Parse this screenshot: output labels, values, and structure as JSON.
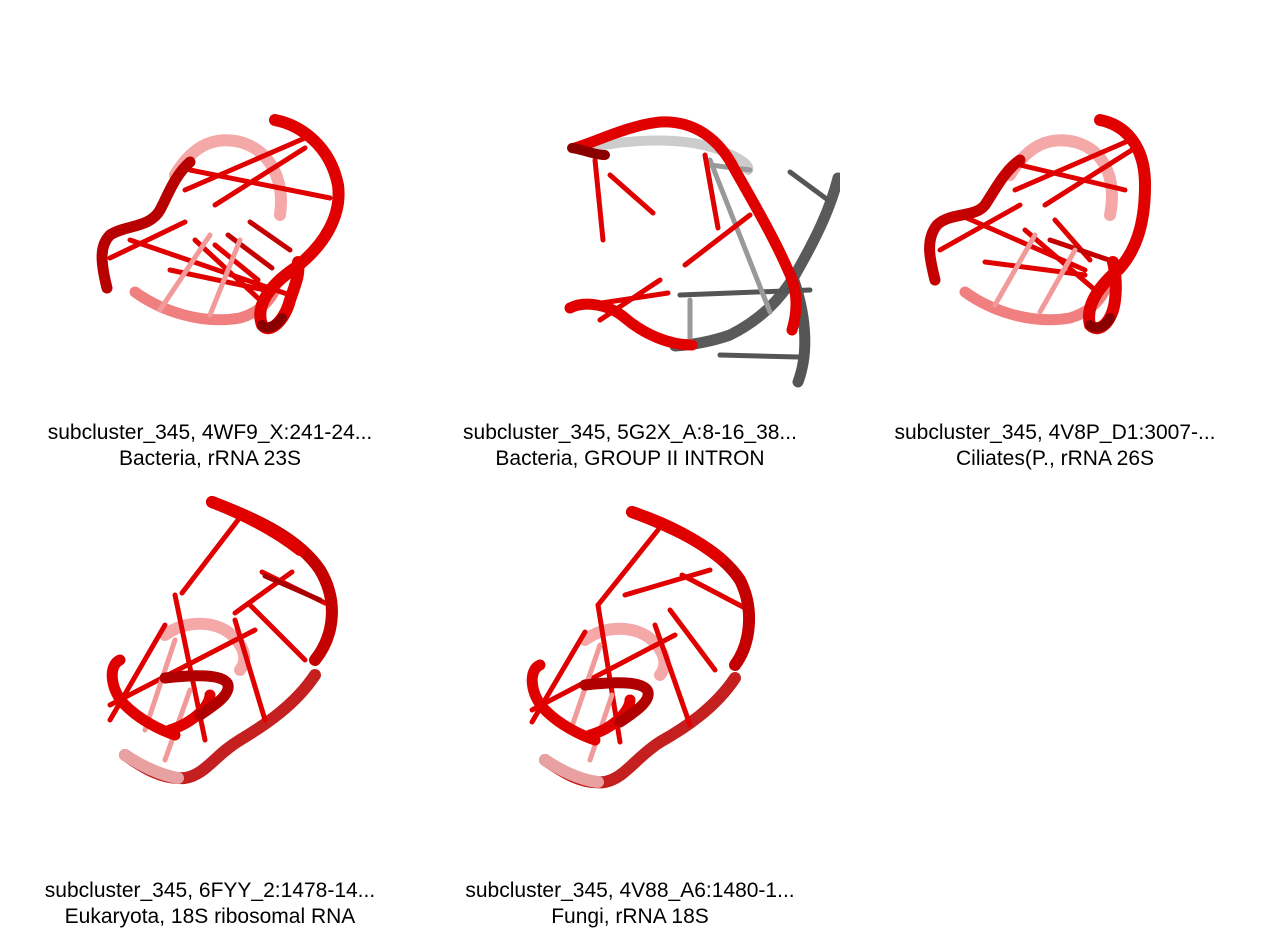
{
  "panels": [
    {
      "line1": "subcluster_345, 4WF9_X:241-24...",
      "line2": "Bacteria, rRNA 23S"
    },
    {
      "line1": "subcluster_345, 5G2X_A:8-16_38...",
      "line2": "Bacteria, GROUP II INTRON"
    },
    {
      "line1": "subcluster_345, 4V8P_D1:3007-...",
      "line2": "Ciliates(P., rRNA 26S"
    },
    {
      "line1": "subcluster_345, 6FYY_2:1478-14...",
      "line2": "Eukaryota, 18S ribosomal RNA"
    },
    {
      "line1": "subcluster_345, 4V88_A6:1480-1...",
      "line2": "Fungi, rRNA 18S"
    }
  ],
  "colors": {
    "backbone_red": "#e00000",
    "backbone_dark": "#9a0000",
    "backbone_faded": "#f08080",
    "backbone_gray": "#555555",
    "background": "#ffffff"
  }
}
